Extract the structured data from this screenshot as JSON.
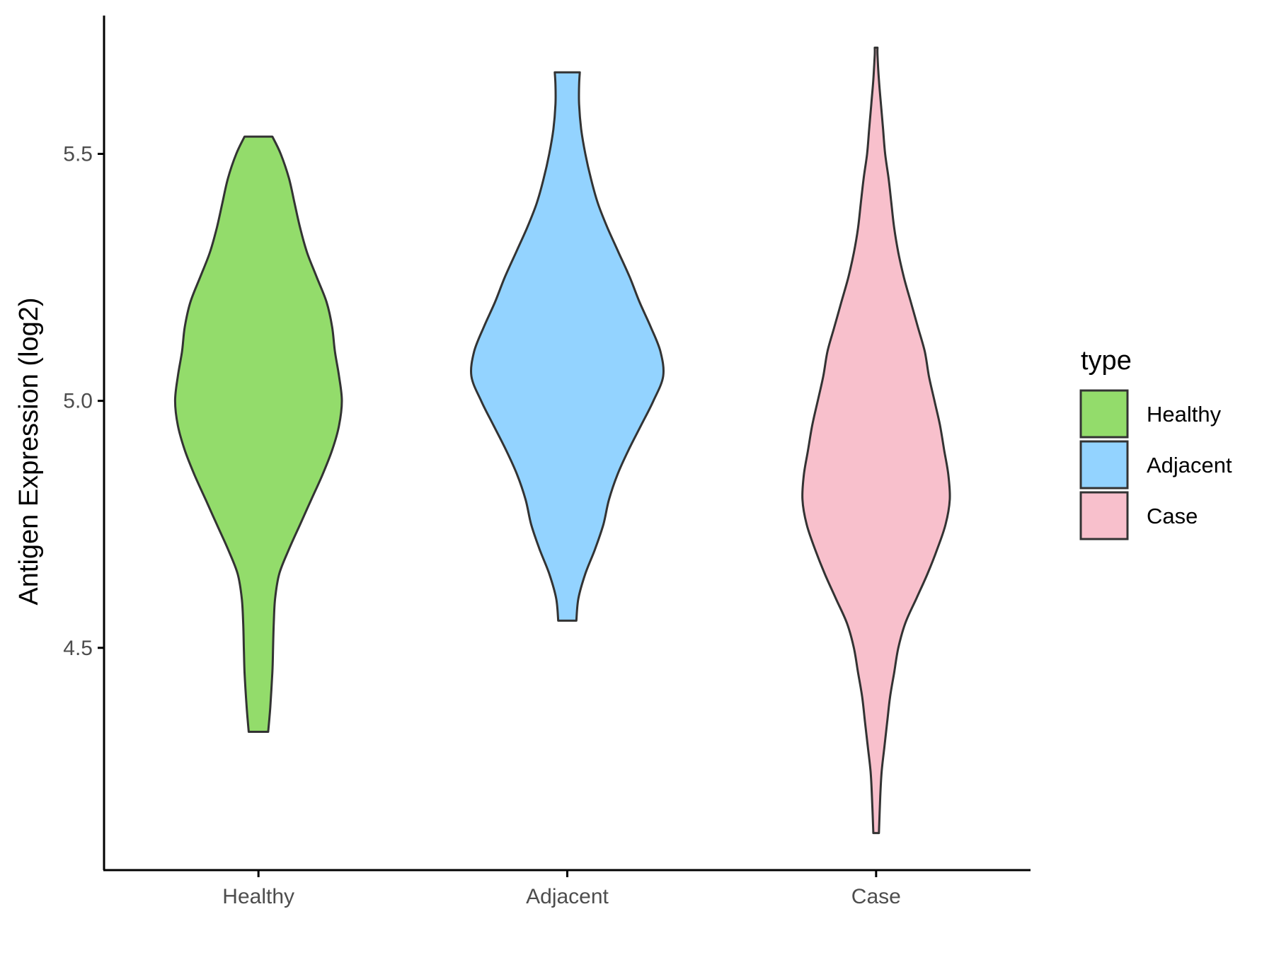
{
  "chart_data": {
    "type": "violin",
    "categories": [
      "Healthy",
      "Adjacent",
      "Case"
    ],
    "ylabel": "Antigen Expression (log2)",
    "xlabel": "",
    "ylim": [
      4.05,
      5.78
    ],
    "yticks": [
      4.5,
      5.0,
      5.5
    ],
    "grid": false,
    "legend": {
      "title": "type",
      "position": "right",
      "entries": [
        "Healthy",
        "Adjacent",
        "Case"
      ]
    },
    "series": [
      {
        "category": "Healthy",
        "color": "#93DC6B",
        "min": 4.33,
        "max": 5.535,
        "profile": [
          [
            4.33,
            0.07
          ],
          [
            4.38,
            0.085
          ],
          [
            4.45,
            0.1
          ],
          [
            4.5,
            0.105
          ],
          [
            4.55,
            0.11
          ],
          [
            4.6,
            0.12
          ],
          [
            4.65,
            0.15
          ],
          [
            4.7,
            0.22
          ],
          [
            4.75,
            0.3
          ],
          [
            4.8,
            0.38
          ],
          [
            4.85,
            0.46
          ],
          [
            4.9,
            0.53
          ],
          [
            4.95,
            0.58
          ],
          [
            5.0,
            0.6
          ],
          [
            5.05,
            0.58
          ],
          [
            5.1,
            0.55
          ],
          [
            5.15,
            0.53
          ],
          [
            5.2,
            0.49
          ],
          [
            5.25,
            0.42
          ],
          [
            5.3,
            0.35
          ],
          [
            5.35,
            0.3
          ],
          [
            5.4,
            0.26
          ],
          [
            5.45,
            0.22
          ],
          [
            5.5,
            0.16
          ],
          [
            5.535,
            0.1
          ]
        ]
      },
      {
        "category": "Adjacent",
        "color": "#93D3FF",
        "min": 4.555,
        "max": 5.665,
        "profile": [
          [
            4.555,
            0.065
          ],
          [
            4.6,
            0.08
          ],
          [
            4.65,
            0.13
          ],
          [
            4.7,
            0.2
          ],
          [
            4.75,
            0.26
          ],
          [
            4.8,
            0.3
          ],
          [
            4.85,
            0.36
          ],
          [
            4.9,
            0.44
          ],
          [
            4.95,
            0.53
          ],
          [
            5.0,
            0.62
          ],
          [
            5.05,
            0.69
          ],
          [
            5.1,
            0.67
          ],
          [
            5.15,
            0.6
          ],
          [
            5.2,
            0.52
          ],
          [
            5.25,
            0.45
          ],
          [
            5.3,
            0.37
          ],
          [
            5.35,
            0.29
          ],
          [
            5.4,
            0.22
          ],
          [
            5.45,
            0.17
          ],
          [
            5.5,
            0.13
          ],
          [
            5.55,
            0.1
          ],
          [
            5.6,
            0.085
          ],
          [
            5.64,
            0.085
          ],
          [
            5.665,
            0.09
          ]
        ]
      },
      {
        "category": "Case",
        "color": "#F8C0CC",
        "min": 4.125,
        "max": 5.715,
        "profile": [
          [
            4.125,
            0.02
          ],
          [
            4.2,
            0.03
          ],
          [
            4.25,
            0.04
          ],
          [
            4.3,
            0.06
          ],
          [
            4.35,
            0.08
          ],
          [
            4.4,
            0.1
          ],
          [
            4.45,
            0.13
          ],
          [
            4.5,
            0.16
          ],
          [
            4.55,
            0.21
          ],
          [
            4.6,
            0.29
          ],
          [
            4.65,
            0.37
          ],
          [
            4.7,
            0.44
          ],
          [
            4.75,
            0.5
          ],
          [
            4.8,
            0.53
          ],
          [
            4.85,
            0.52
          ],
          [
            4.9,
            0.49
          ],
          [
            4.95,
            0.46
          ],
          [
            5.0,
            0.42
          ],
          [
            5.05,
            0.38
          ],
          [
            5.1,
            0.35
          ],
          [
            5.15,
            0.3
          ],
          [
            5.2,
            0.25
          ],
          [
            5.25,
            0.2
          ],
          [
            5.3,
            0.16
          ],
          [
            5.35,
            0.13
          ],
          [
            5.4,
            0.11
          ],
          [
            5.45,
            0.09
          ],
          [
            5.5,
            0.065
          ],
          [
            5.55,
            0.05
          ],
          [
            5.6,
            0.035
          ],
          [
            5.65,
            0.02
          ],
          [
            5.7,
            0.01
          ],
          [
            5.715,
            0.01
          ]
        ]
      }
    ]
  }
}
